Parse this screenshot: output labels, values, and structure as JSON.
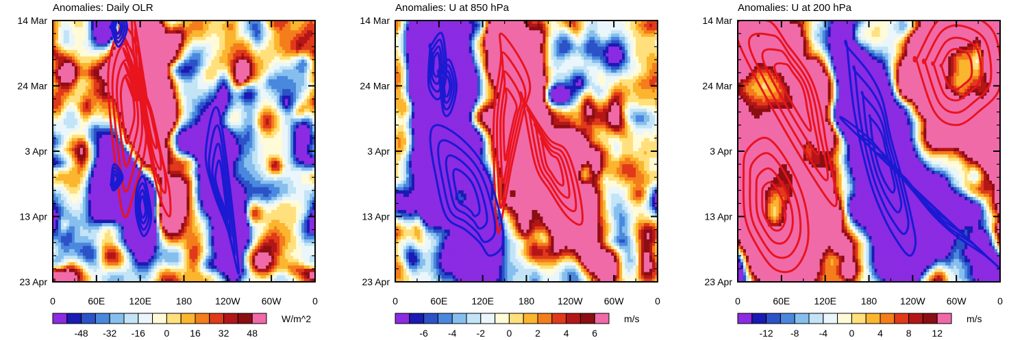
{
  "colors": {
    "contour_positive": "#e8141e",
    "contour_negative": "#1a1ad2",
    "palette": [
      "#8b2be2",
      "#1a1ab4",
      "#2c52c8",
      "#4a88de",
      "#86bfee",
      "#c2e4f6",
      "#eaf6fb",
      "#fffbd8",
      "#ffe07c",
      "#fbb52e",
      "#f47d1c",
      "#e03a1a",
      "#b41618",
      "#8b0e12",
      "#f06aa8"
    ]
  },
  "chart_data": [
    {
      "type": "heatmap",
      "title": "Anomalies: Daily OLR",
      "shading_variable": "OLR anomaly",
      "units": "W/m^2",
      "colorbar_ticks": [
        "-48",
        "-32",
        "-16",
        "0",
        "16",
        "32",
        "48"
      ],
      "colorbar_levels": [
        -56,
        -48,
        -40,
        -32,
        -24,
        -16,
        -8,
        0,
        8,
        16,
        24,
        32,
        40,
        48,
        56
      ],
      "x_ticks": [
        "0",
        "60E",
        "120E",
        "180",
        "120W",
        "60W",
        "0"
      ],
      "y_ticks": [
        "14 Mar",
        "24 Mar",
        "3 Apr",
        "13 Apr",
        "23 Apr"
      ],
      "xlim": [
        0,
        360
      ],
      "ylim": [
        "14 Mar",
        "23 Apr"
      ],
      "contours": {
        "positive": [
          {
            "lon": [
              95,
              118,
              128,
              112,
              98,
              86,
              76,
              82,
              98,
              115,
              128
            ],
            "day": [
              2,
              8,
              18,
              26,
              30,
              22,
              10,
              4,
              1,
              4,
              12
            ]
          },
          {
            "lon": [
              160,
              150,
              136,
              124,
              118,
              112,
              108,
              112,
              126,
              144,
              160
            ],
            "day": [
              26,
              21,
              14,
              10,
              4,
              0,
              -2,
              6,
              16,
              26,
              30
            ]
          }
        ],
        "negative": [
          {
            "lon": [
              255,
              240,
              220,
              210,
              228
            ],
            "day": [
              38,
              32,
              26,
              20,
              14
            ]
          },
          {
            "lon": [
              115,
              125,
              135,
              125,
              115
            ],
            "day": [
              26,
              24,
              30,
              33,
              30
            ]
          },
          {
            "lon": [
              80,
              84,
              96,
              84,
              80
            ],
            "day": [
              25,
              22,
              24,
              26,
              25
            ]
          },
          {
            "lon": [
              80,
              90,
              102,
              90,
              80
            ],
            "day": [
              1,
              -2,
              1,
              4,
              1
            ]
          }
        ]
      }
    },
    {
      "type": "heatmap",
      "title": "Anomalies: U at 850 hPa",
      "shading_variable": "U anomaly",
      "units": "m/s",
      "colorbar_ticks": [
        "-6",
        "-4",
        "-2",
        "0",
        "2",
        "4",
        "6"
      ],
      "colorbar_levels": [
        -7,
        -6,
        -5,
        -4,
        -3,
        -2,
        -1,
        0,
        1,
        2,
        3,
        4,
        5,
        6,
        7
      ],
      "x_ticks": [
        "0",
        "60E",
        "120E",
        "180",
        "120W",
        "60W",
        "0"
      ],
      "y_ticks": [
        "14 Mar",
        "24 Mar",
        "3 Apr",
        "13 Apr",
        "23 Apr"
      ],
      "xlim": [
        0,
        360
      ],
      "ylim": [
        "14 Mar",
        "23 Apr"
      ],
      "contours": {
        "positive": [
          {
            "lon": [
              145,
              172,
              185,
              176,
              160,
              150,
              140,
              135,
              145
            ],
            "day": [
              2,
              6,
              10,
              14,
              22,
              28,
              32,
              16,
              6
            ]
          },
          {
            "lon": [
              175,
              210,
              235,
              252,
              256,
              236,
              212,
              192,
              175
            ],
            "day": [
              12,
              18,
              20,
              26,
              31,
              30,
              26,
              22,
              12
            ]
          }
        ],
        "negative": [
          {
            "lon": [
              58,
              90,
              120,
              140,
              148,
              130,
              116,
              96,
              70,
              56,
              48
            ],
            "day": [
              16,
              18,
              22,
              28,
              34,
              36,
              34,
              32,
              30,
              24,
              18
            ]
          },
          {
            "lon": [
              60,
              74,
              84,
              76,
              66,
              60
            ],
            "day": [
              8,
              6,
              10,
              14,
              14,
              8
            ]
          },
          {
            "lon": [
              48,
              64,
              70,
              60,
              46,
              48
            ],
            "day": [
              4,
              2,
              8,
              12,
              10,
              4
            ]
          }
        ]
      }
    },
    {
      "type": "heatmap",
      "title": "Anomalies: U at 200 hPa",
      "shading_variable": "U anomaly",
      "units": "m/s",
      "colorbar_ticks": [
        "-12",
        "-8",
        "-4",
        "0",
        "4",
        "8",
        "12"
      ],
      "colorbar_levels": [
        -14,
        -12,
        -10,
        -8,
        -6,
        -4,
        -2,
        0,
        2,
        4,
        6,
        8,
        10,
        12,
        14
      ],
      "x_ticks": [
        "0",
        "60E",
        "120E",
        "180",
        "120W",
        "60W",
        "0"
      ],
      "y_ticks": [
        "14 Mar",
        "24 Mar",
        "3 Apr",
        "13 Apr",
        "23 Apr"
      ],
      "xlim": [
        0,
        360
      ],
      "ylim": [
        "14 Mar",
        "23 Apr"
      ],
      "contours": {
        "positive": [
          {
            "lon": [
              12,
              40,
              70,
              92,
              96,
              78,
              50,
              24,
              10,
              8
            ],
            "day": [
              20,
              18,
              22,
              28,
              34,
              38,
              38,
              34,
              30,
              24
            ]
          },
          {
            "lon": [
              0,
              40,
              70,
              96,
              110,
              120,
              128
            ],
            "day": [
              3,
              0,
              4,
              8,
              12,
              18,
              28
            ]
          },
          {
            "lon": [
              245,
              275,
              312,
              352,
              360,
              330,
              300,
              270,
              245
            ],
            "day": [
              6,
              0,
              -1,
              2,
              10,
              14,
              16,
              14,
              6
            ]
          }
        ],
        "negative": [
          {
            "lon": [
              150,
              180,
              198,
              210,
              225,
              238,
              244,
              236,
              220,
              200,
              180,
              160,
              150
            ],
            "day": [
              4,
              8,
              12,
              18,
              24,
              30,
              34,
              36,
              34,
              30,
              24,
              14,
              4
            ]
          },
          {
            "lon": [
              150,
              180,
              210,
              240,
              270,
              300,
              340,
              360
            ],
            "day": [
              16,
              18,
              22,
              26,
              30,
              33,
              36,
              38
            ]
          }
        ]
      }
    }
  ]
}
